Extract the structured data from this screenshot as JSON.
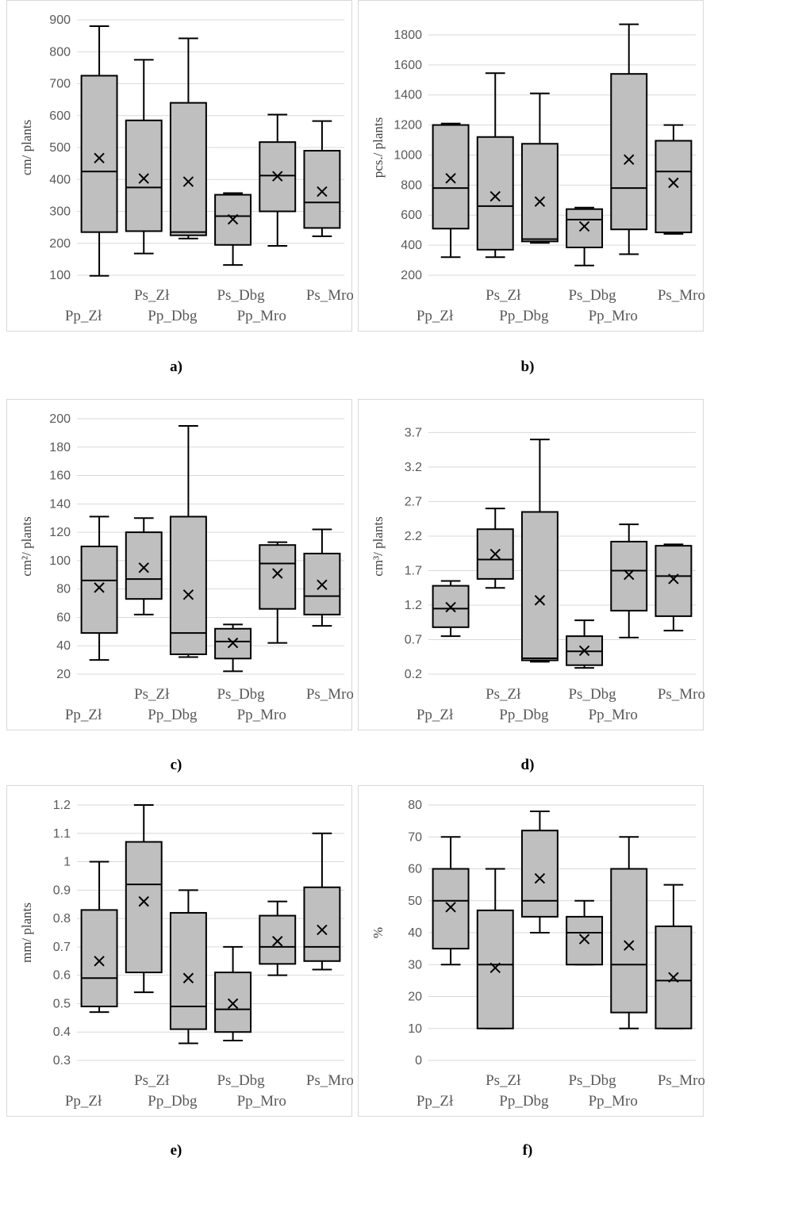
{
  "chart_data": [
    {
      "id": "a",
      "caption": "a)",
      "type": "box",
      "ylabel": "cm/ plants",
      "ylim": [
        100,
        900
      ],
      "yticks": [
        100,
        200,
        300,
        400,
        500,
        600,
        700,
        800,
        900
      ],
      "categories": [
        "Pp_Zł",
        "Ps_Zł",
        "Pp_Dbg",
        "Ps_Dbg",
        "Pp_Mro",
        "Ps_Mro"
      ],
      "boxes": [
        {
          "min": 98,
          "q1": 235,
          "median": 425,
          "q3": 725,
          "max": 880,
          "mean": 467
        },
        {
          "min": 168,
          "q1": 238,
          "median": 375,
          "q3": 585,
          "max": 775,
          "mean": 403
        },
        {
          "min": 215,
          "q1": 225,
          "median": 235,
          "q3": 640,
          "max": 842,
          "mean": 393
        },
        {
          "min": 132,
          "q1": 195,
          "median": 285,
          "q3": 352,
          "max": 357,
          "mean": 275
        },
        {
          "min": 192,
          "q1": 300,
          "median": 412,
          "q3": 517,
          "max": 603,
          "mean": 410
        },
        {
          "min": 222,
          "q1": 248,
          "median": 328,
          "q3": 490,
          "max": 583,
          "mean": 362
        }
      ]
    },
    {
      "id": "b",
      "caption": "b)",
      "type": "box",
      "ylabel": "pcs./ plants",
      "ylim": [
        200,
        1900
      ],
      "yticks": [
        200,
        400,
        600,
        800,
        1000,
        1200,
        1400,
        1600,
        1800
      ],
      "categories": [
        "Pp_Zł",
        "Ps_Zł",
        "Pp_Dbg",
        "Ps_Dbg",
        "Pp_Mro",
        "Ps_Mro"
      ],
      "boxes": [
        {
          "min": 320,
          "q1": 510,
          "median": 780,
          "q3": 1200,
          "max": 1210,
          "mean": 845
        },
        {
          "min": 320,
          "q1": 370,
          "median": 660,
          "q3": 1120,
          "max": 1545,
          "mean": 725
        },
        {
          "min": 415,
          "q1": 425,
          "median": 440,
          "q3": 1075,
          "max": 1410,
          "mean": 690
        },
        {
          "min": 265,
          "q1": 385,
          "median": 570,
          "q3": 640,
          "max": 650,
          "mean": 525
        },
        {
          "min": 340,
          "q1": 505,
          "median": 780,
          "q3": 1540,
          "max": 1870,
          "mean": 970
        },
        {
          "min": 475,
          "q1": 485,
          "median": 890,
          "q3": 1095,
          "max": 1200,
          "mean": 815
        }
      ]
    },
    {
      "id": "c",
      "caption": "c)",
      "type": "box",
      "ylabel": "cm²/ plants",
      "ylim": [
        20,
        200
      ],
      "yticks": [
        20,
        40,
        60,
        80,
        100,
        120,
        140,
        160,
        180,
        200
      ],
      "categories": [
        "Pp_Zł",
        "Ps_Zł",
        "Pp_Dbg",
        "Ps_Dbg",
        "Pp_Mro",
        "Ps_Mro"
      ],
      "boxes": [
        {
          "min": 30,
          "q1": 49,
          "median": 86,
          "q3": 110,
          "max": 131,
          "mean": 81
        },
        {
          "min": 62,
          "q1": 73,
          "median": 87,
          "q3": 120,
          "max": 130,
          "mean": 95
        },
        {
          "min": 32,
          "q1": 34,
          "median": 49,
          "q3": 131,
          "max": 195,
          "mean": 76
        },
        {
          "min": 22,
          "q1": 31,
          "median": 43,
          "q3": 52,
          "max": 55,
          "mean": 42
        },
        {
          "min": 42,
          "q1": 66,
          "median": 98,
          "q3": 111,
          "max": 113,
          "mean": 91
        },
        {
          "min": 54,
          "q1": 62,
          "median": 75,
          "q3": 105,
          "max": 122,
          "mean": 83
        }
      ]
    },
    {
      "id": "d",
      "caption": "d)",
      "type": "box",
      "ylabel": "cm³/ plants",
      "ylim": [
        0.2,
        3.9
      ],
      "yticks": [
        0.2,
        0.7,
        1.2,
        1.7,
        2.2,
        2.7,
        3.2,
        3.7
      ],
      "categories": [
        "Pp_Zł",
        "Ps_Zł",
        "Pp_Dbg",
        "Ps_Dbg",
        "Pp_Mro",
        "Ps_Mro"
      ],
      "boxes": [
        {
          "min": 0.75,
          "q1": 0.88,
          "median": 1.15,
          "q3": 1.48,
          "max": 1.55,
          "mean": 1.17
        },
        {
          "min": 1.45,
          "q1": 1.58,
          "median": 1.86,
          "q3": 2.3,
          "max": 2.6,
          "mean": 1.94
        },
        {
          "min": 0.38,
          "q1": 0.4,
          "median": 0.43,
          "q3": 2.55,
          "max": 3.6,
          "mean": 1.27
        },
        {
          "min": 0.29,
          "q1": 0.33,
          "median": 0.53,
          "q3": 0.75,
          "max": 0.98,
          "mean": 0.54
        },
        {
          "min": 0.73,
          "q1": 1.12,
          "median": 1.7,
          "q3": 2.12,
          "max": 2.37,
          "mean": 1.64
        },
        {
          "min": 0.83,
          "q1": 1.04,
          "median": 1.62,
          "q3": 2.06,
          "max": 2.08,
          "mean": 1.58
        }
      ]
    },
    {
      "id": "e",
      "caption": "e)",
      "type": "box",
      "ylabel": "mm/ plants",
      "ylim": [
        0.3,
        1.2
      ],
      "yticks": [
        "0.3",
        "0.4",
        "0.5",
        "0.6",
        "0.7",
        "0.8",
        "0.9",
        "1",
        "1.1",
        "1.2"
      ],
      "categories": [
        "Pp_Zł",
        "Ps_Zł",
        "Pp_Dbg",
        "Ps_Dbg",
        "Pp_Mro",
        "Ps_Mro"
      ],
      "boxes": [
        {
          "min": 0.47,
          "q1": 0.49,
          "median": 0.59,
          "q3": 0.83,
          "max": 1.0,
          "mean": 0.65
        },
        {
          "min": 0.54,
          "q1": 0.61,
          "median": 0.92,
          "q3": 1.07,
          "max": 1.2,
          "mean": 0.86
        },
        {
          "min": 0.36,
          "q1": 0.41,
          "median": 0.49,
          "q3": 0.82,
          "max": 0.9,
          "mean": 0.59
        },
        {
          "min": 0.37,
          "q1": 0.4,
          "median": 0.48,
          "q3": 0.61,
          "max": 0.7,
          "mean": 0.5
        },
        {
          "min": 0.6,
          "q1": 0.64,
          "median": 0.7,
          "q3": 0.81,
          "max": 0.86,
          "mean": 0.72
        },
        {
          "min": 0.62,
          "q1": 0.65,
          "median": 0.7,
          "q3": 0.91,
          "max": 1.1,
          "mean": 0.76
        }
      ]
    },
    {
      "id": "f",
      "caption": "f)",
      "type": "box",
      "ylabel": "%",
      "ylim": [
        0,
        80
      ],
      "yticks": [
        0,
        10,
        20,
        30,
        40,
        50,
        60,
        70,
        80
      ],
      "categories": [
        "Pp_Zł",
        "Ps_Zł",
        "Pp_Dbg",
        "Ps_Dbg",
        "Pp_Mro",
        "Ps_Mro"
      ],
      "boxes": [
        {
          "min": 30,
          "q1": 35,
          "median": 50,
          "q3": 60,
          "max": 70,
          "mean": 48
        },
        {
          "min": 10,
          "q1": 10,
          "median": 30,
          "q3": 47,
          "max": 60,
          "mean": 29
        },
        {
          "min": 40,
          "q1": 45,
          "median": 50,
          "q3": 72,
          "max": 78,
          "mean": 57
        },
        {
          "min": 30,
          "q1": 30,
          "median": 40,
          "q3": 45,
          "max": 50,
          "mean": 38
        },
        {
          "min": 10,
          "q1": 15,
          "median": 30,
          "q3": 60,
          "max": 70,
          "mean": 36
        },
        {
          "min": 10,
          "q1": 10,
          "median": 25,
          "q3": 42,
          "max": 55,
          "mean": 26
        }
      ]
    }
  ],
  "colors": {
    "box_fill": "#bfbfbf",
    "line": "#000000",
    "grid": "#d9d9d9",
    "text": "#595959"
  }
}
